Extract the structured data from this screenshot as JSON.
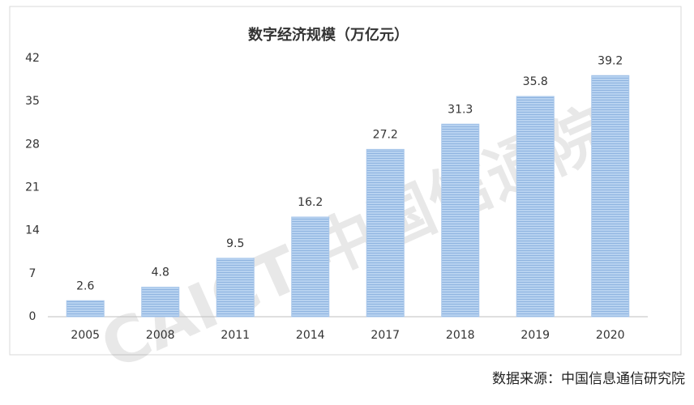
{
  "chart_data": {
    "type": "bar",
    "title": "数字经济规模（万亿元）",
    "categories": [
      "2005",
      "2008",
      "2011",
      "2014",
      "2017",
      "2018",
      "2019",
      "2020"
    ],
    "values": [
      2.6,
      4.8,
      9.5,
      16.2,
      27.2,
      31.3,
      35.8,
      39.2
    ],
    "color": "#a7c6ea",
    "ylim": [
      0,
      42
    ],
    "yticks": [
      0,
      7,
      14,
      21,
      28,
      35,
      42
    ],
    "grid": false,
    "watermark": "CAICT 中国信通院",
    "source": "数据来源：中国信息通信研究院"
  }
}
